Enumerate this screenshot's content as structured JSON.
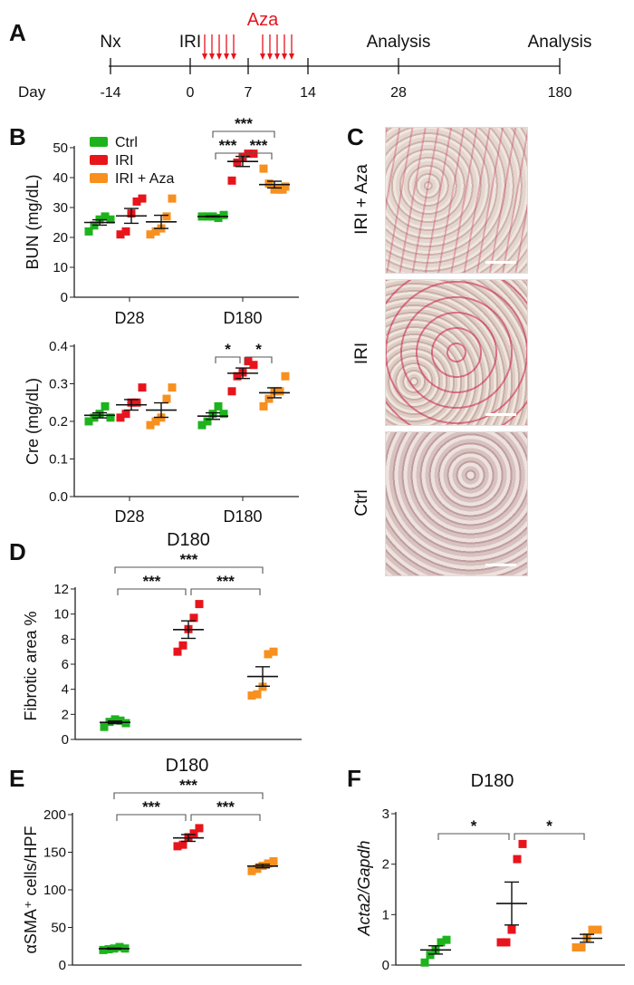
{
  "panel_labels": [
    "A",
    "B",
    "C",
    "D",
    "E",
    "F"
  ],
  "timeline": {
    "day_label": "Day",
    "ticks": [
      {
        "day": "-14",
        "event": "Nx"
      },
      {
        "day": "0",
        "event": "IRI"
      },
      {
        "day": "7",
        "event": ""
      },
      {
        "day": "14",
        "event": ""
      },
      {
        "day": "28",
        "event": "Analysis"
      },
      {
        "day": "180",
        "event": "Analysis"
      }
    ],
    "treatment": "Aza",
    "treatment_color": "#e8141c"
  },
  "legend": [
    "Ctrl",
    "IRI",
    "IRI + Aza"
  ],
  "colors": {
    "Ctrl": "#1db31d",
    "IRI": "#e8141c",
    "IRI + Aza": "#f7901e"
  },
  "histology": {
    "labels": [
      "IRI + Aza",
      "IRI",
      "Ctrl"
    ]
  },
  "chart_data": [
    {
      "id": "bun",
      "type": "scatter",
      "ylabel": "BUN (mg/dL)",
      "title": "",
      "ylim": [
        0,
        50
      ],
      "yticks": [
        0,
        10,
        20,
        30,
        40,
        50
      ],
      "categories": [
        "D28",
        "D180"
      ],
      "groups": [
        {
          "category": "D28",
          "series": "Ctrl",
          "values": [
            22,
            24,
            26,
            27,
            26
          ]
        },
        {
          "category": "D28",
          "series": "IRI",
          "values": [
            21,
            22,
            28,
            32,
            33
          ]
        },
        {
          "category": "D28",
          "series": "IRI + Aza",
          "values": [
            21,
            22,
            23,
            27,
            33
          ]
        },
        {
          "category": "D180",
          "series": "Ctrl",
          "values": [
            27,
            27,
            27,
            26.5,
            27.5
          ]
        },
        {
          "category": "D180",
          "series": "IRI",
          "values": [
            39,
            45,
            47,
            48,
            48
          ]
        },
        {
          "category": "D180",
          "series": "IRI + Aza",
          "values": [
            43,
            38,
            36,
            36,
            37,
            36
          ]
        }
      ],
      "significance": [
        {
          "from": 3,
          "to": 4,
          "label": "***"
        },
        {
          "from": 4,
          "to": 5,
          "label": "***"
        },
        {
          "from": 3,
          "to": 5,
          "label": "***"
        }
      ]
    },
    {
      "id": "cre",
      "type": "scatter",
      "ylabel": "Cre (mg/dL)",
      "title": "",
      "ylim": [
        0,
        0.4
      ],
      "yticks": [
        "0.0",
        "0.1",
        "0.2",
        "0.3",
        "0.4"
      ],
      "categories": [
        "D28",
        "D180"
      ],
      "groups": [
        {
          "category": "D28",
          "series": "Ctrl",
          "values": [
            0.2,
            0.21,
            0.22,
            0.24,
            0.21
          ]
        },
        {
          "category": "D28",
          "series": "IRI",
          "values": [
            0.21,
            0.22,
            0.25,
            0.25,
            0.29
          ]
        },
        {
          "category": "D28",
          "series": "IRI + Aza",
          "values": [
            0.19,
            0.2,
            0.21,
            0.26,
            0.29
          ]
        },
        {
          "category": "D180",
          "series": "Ctrl",
          "values": [
            0.19,
            0.2,
            0.22,
            0.24,
            0.22
          ]
        },
        {
          "category": "D180",
          "series": "IRI",
          "values": [
            0.28,
            0.32,
            0.33,
            0.36,
            0.35
          ]
        },
        {
          "category": "D180",
          "series": "IRI + Aza",
          "values": [
            0.24,
            0.26,
            0.28,
            0.28,
            0.32
          ]
        }
      ],
      "significance": [
        {
          "from": 3,
          "to": 4,
          "label": "*"
        },
        {
          "from": 4,
          "to": 5,
          "label": "*"
        }
      ]
    },
    {
      "id": "fibrotic",
      "type": "scatter",
      "ylabel": "Fibrotic area %",
      "title": "D180",
      "ylim": [
        0,
        12
      ],
      "yticks": [
        0,
        2,
        4,
        6,
        8,
        10,
        12
      ],
      "categories": [],
      "groups": [
        {
          "series": "Ctrl",
          "values": [
            1.0,
            1.4,
            1.6,
            1.5,
            1.3
          ]
        },
        {
          "series": "IRI",
          "values": [
            7.0,
            7.5,
            8.8,
            9.7,
            10.8
          ]
        },
        {
          "series": "IRI + Aza",
          "values": [
            3.5,
            3.6,
            4.2,
            6.8,
            7.0
          ]
        }
      ],
      "significance": [
        {
          "from": 0,
          "to": 1,
          "label": "***"
        },
        {
          "from": 1,
          "to": 2,
          "label": "***"
        },
        {
          "from": 0,
          "to": 2,
          "label": "***"
        }
      ]
    },
    {
      "id": "asma",
      "type": "scatter",
      "ylabel": "αSMA⁺ cells/HPF",
      "title": "D180",
      "ylim": [
        0,
        200
      ],
      "yticks": [
        0,
        50,
        100,
        150,
        200
      ],
      "categories": [],
      "groups": [
        {
          "series": "Ctrl",
          "values": [
            20,
            21,
            22,
            24,
            22
          ]
        },
        {
          "series": "IRI",
          "values": [
            158,
            160,
            170,
            175,
            182
          ]
        },
        {
          "series": "IRI + Aza",
          "values": [
            125,
            128,
            132,
            135,
            138
          ]
        }
      ],
      "significance": [
        {
          "from": 0,
          "to": 1,
          "label": "***"
        },
        {
          "from": 1,
          "to": 2,
          "label": "***"
        },
        {
          "from": 0,
          "to": 2,
          "label": "***"
        }
      ]
    },
    {
      "id": "acta2",
      "type": "scatter",
      "ylabel": "Acta2/Gapdh",
      "ylabel_italic": true,
      "title": "D180",
      "ylim": [
        0,
        3
      ],
      "yticks": [
        0,
        1,
        2,
        3
      ],
      "categories": [],
      "groups": [
        {
          "series": "Ctrl",
          "values": [
            0.05,
            0.2,
            0.3,
            0.45,
            0.5
          ]
        },
        {
          "series": "IRI",
          "values": [
            0.45,
            0.45,
            0.7,
            2.1,
            2.4
          ]
        },
        {
          "series": "IRI + Aza",
          "values": [
            0.35,
            0.35,
            0.55,
            0.7,
            0.7
          ]
        }
      ],
      "significance": [
        {
          "from": 0,
          "to": 1,
          "label": "*"
        },
        {
          "from": 1,
          "to": 2,
          "label": "*"
        }
      ]
    }
  ]
}
